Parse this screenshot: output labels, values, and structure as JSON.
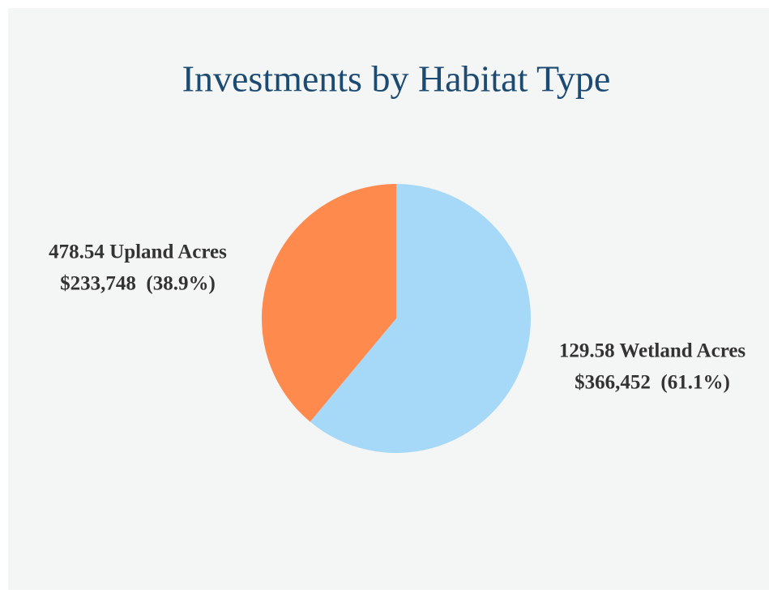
{
  "chart_data": {
    "type": "pie",
    "title": "Investments by Habitat Type",
    "categories": [
      "129.58 Wetland Acres",
      "478.54 Upland Acres"
    ],
    "values": [
      366452,
      233748
    ],
    "value_labels": [
      "$366,452  (61.1%)",
      "$233,748  (38.9%)"
    ],
    "colors": [
      "#a6d8f8",
      "#ff8a4e"
    ]
  }
}
